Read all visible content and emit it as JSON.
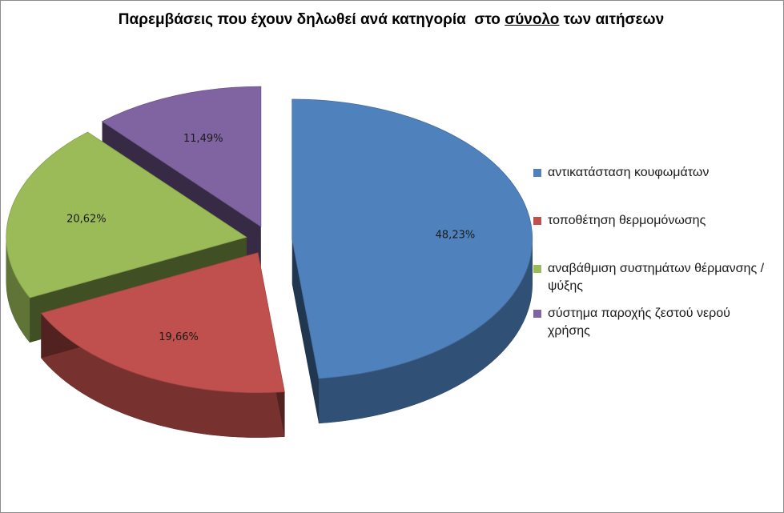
{
  "chart_data": {
    "type": "pie",
    "title_parts": [
      "Παρεμβάσεις που έχουν δηλωθεί ανά κατηγορία  στο ",
      "σύνολο",
      " των αιτήσεων"
    ],
    "title": "Παρεμβάσεις που έχουν δηλωθεί ανά κατηγορία  στο σύνολο των αιτήσεων",
    "legend_position": "right",
    "slices": [
      {
        "label": "αντικατάσταση κουφωμάτων",
        "value": 48.23,
        "data_label": "48,23%",
        "color": "#4f81bd"
      },
      {
        "label": "τοποθέτηση θερμομόνωσης",
        "value": 19.66,
        "data_label": "19,66%",
        "color": "#c0504d"
      },
      {
        "label": "αναβάθμιση συστημάτων θέρμανσης / ψύξης",
        "value": 20.62,
        "data_label": "20,62%",
        "color": "#9bbb59"
      },
      {
        "label": "σύστημα παροχής ζεστού νερού χρήσης",
        "value": 11.49,
        "data_label": "11,49%",
        "color": "#8064a2"
      }
    ]
  }
}
